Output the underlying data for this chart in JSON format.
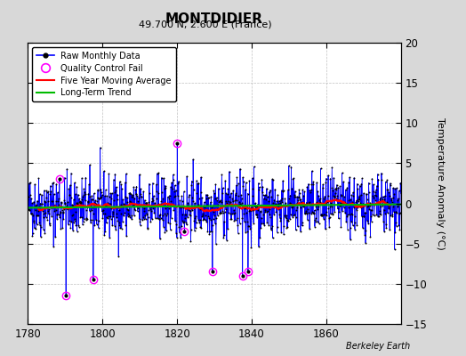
{
  "title": "MONTDIDIER",
  "subtitle": "49.700 N, 2.600 E (France)",
  "ylabel": "Temperature Anomaly (°C)",
  "credit": "Berkeley Earth",
  "xlim": [
    1780,
    1880
  ],
  "ylim": [
    -15,
    20
  ],
  "yticks": [
    -15,
    -10,
    -5,
    0,
    5,
    10,
    15,
    20
  ],
  "xticks": [
    1780,
    1800,
    1820,
    1840,
    1860
  ],
  "x_start": 1780,
  "x_end": 1880,
  "n_months": 1080,
  "raw_color": "#0000ff",
  "dot_color": "#000000",
  "qc_color": "#ff00ff",
  "ma_color": "#ff0000",
  "trend_color": "#00bb00",
  "background_color": "#d8d8d8",
  "plot_bg_color": "#ffffff",
  "seed": 42,
  "mean_anomaly": -0.4,
  "std_anomaly": 1.9,
  "trend_slope": 0.001,
  "ma_window": 60,
  "qc_fail_years": [
    1788.5,
    1790.2,
    1797.5,
    1820.0,
    1822.0,
    1829.5,
    1837.5,
    1839.0
  ],
  "qc_fail_values": [
    3.0,
    -11.5,
    -9.5,
    7.5,
    -3.5,
    -8.5,
    -9.0,
    -8.5
  ],
  "figsize": [
    5.24,
    4.0
  ],
  "dpi": 100
}
